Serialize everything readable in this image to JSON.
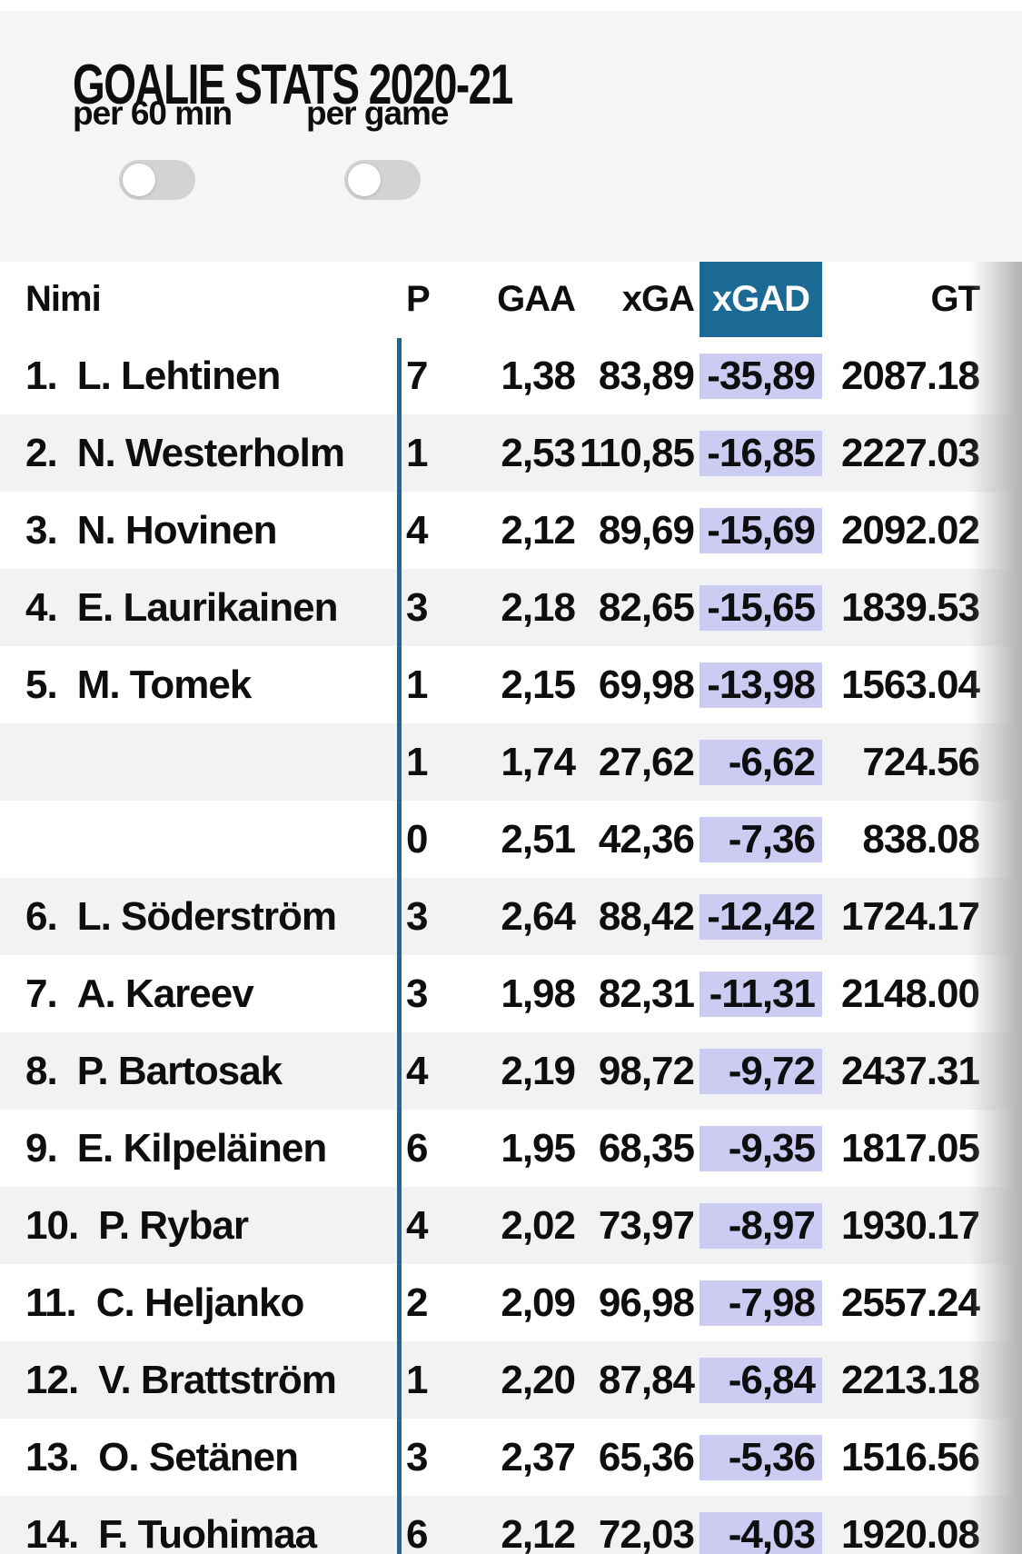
{
  "title": "GOALIE STATS 2020-21",
  "toggles": [
    {
      "label": "per 60 min",
      "state": "off"
    },
    {
      "label": "per game",
      "state": "off"
    }
  ],
  "table": {
    "columns": [
      {
        "key": "name",
        "label": "Nimi"
      },
      {
        "key": "p",
        "label": "P"
      },
      {
        "key": "gaa",
        "label": "GAA"
      },
      {
        "key": "xga",
        "label": "xGA"
      },
      {
        "key": "xgad",
        "label": "xGAD",
        "highlighted": true
      },
      {
        "key": "gt",
        "label": "GT"
      }
    ],
    "rows": [
      {
        "rank": "1.",
        "name": "L. Lehtinen",
        "p": "7",
        "gaa": "1,38",
        "xga": "83,89",
        "xgad": "-35,89",
        "gt": "2087.18"
      },
      {
        "rank": "2.",
        "name": "N. Westerholm",
        "p": "1",
        "gaa": "2,53",
        "xga": "110,85",
        "xgad": "-16,85",
        "gt": "2227.03"
      },
      {
        "rank": "3.",
        "name": "N. Hovinen",
        "p": "4",
        "gaa": "2,12",
        "xga": "89,69",
        "xgad": "-15,69",
        "gt": "2092.02"
      },
      {
        "rank": "4.",
        "name": "E. Laurikainen",
        "p": "3",
        "gaa": "2,18",
        "xga": "82,65",
        "xgad": "-15,65",
        "gt": "1839.53"
      },
      {
        "rank": "5.",
        "name": "M. Tomek",
        "p": "1",
        "gaa": "2,15",
        "xga": "69,98",
        "xgad": "-13,98",
        "gt": "1563.04"
      },
      {
        "rank": "",
        "name": "",
        "p": "1",
        "gaa": "1,74",
        "xga": "27,62",
        "xgad": "-6,62",
        "gt": "724.56"
      },
      {
        "rank": "",
        "name": "",
        "p": "0",
        "gaa": "2,51",
        "xga": "42,36",
        "xgad": "-7,36",
        "gt": "838.08"
      },
      {
        "rank": "6.",
        "name": "L. Söderström",
        "p": "3",
        "gaa": "2,64",
        "xga": "88,42",
        "xgad": "-12,42",
        "gt": "1724.17"
      },
      {
        "rank": "7.",
        "name": "A. Kareev",
        "p": "3",
        "gaa": "1,98",
        "xga": "82,31",
        "xgad": "-11,31",
        "gt": "2148.00"
      },
      {
        "rank": "8.",
        "name": "P. Bartosak",
        "p": "4",
        "gaa": "2,19",
        "xga": "98,72",
        "xgad": "-9,72",
        "gt": "2437.31"
      },
      {
        "rank": "9.",
        "name": "E. Kilpeläinen",
        "p": "6",
        "gaa": "1,95",
        "xga": "68,35",
        "xgad": "-9,35",
        "gt": "1817.05"
      },
      {
        "rank": "10.",
        "name": "P. Rybar",
        "p": "4",
        "gaa": "2,02",
        "xga": "73,97",
        "xgad": "-8,97",
        "gt": "1930.17"
      },
      {
        "rank": "11.",
        "name": "C. Heljanko",
        "p": "2",
        "gaa": "2,09",
        "xga": "96,98",
        "xgad": "-7,98",
        "gt": "2557.24"
      },
      {
        "rank": "12.",
        "name": "V. Brattström",
        "p": "1",
        "gaa": "2,20",
        "xga": "87,84",
        "xgad": "-6,84",
        "gt": "2213.18"
      },
      {
        "rank": "13.",
        "name": "O. Setänen",
        "p": "3",
        "gaa": "2,37",
        "xga": "65,36",
        "xgad": "-5,36",
        "gt": "1516.56"
      },
      {
        "rank": "14.",
        "name": "F. Tuohimaa",
        "p": "6",
        "gaa": "2,12",
        "xga": "72,03",
        "xgad": "-4,03",
        "gt": "1920.08"
      }
    ]
  },
  "colors": {
    "accent_blue": "#1b6a96",
    "highlight_lavender": "#ccccf2",
    "row_alt": "#f2f2f4",
    "page_bg": "#f4f5f7",
    "toggle_track": "#d3d3d5"
  }
}
